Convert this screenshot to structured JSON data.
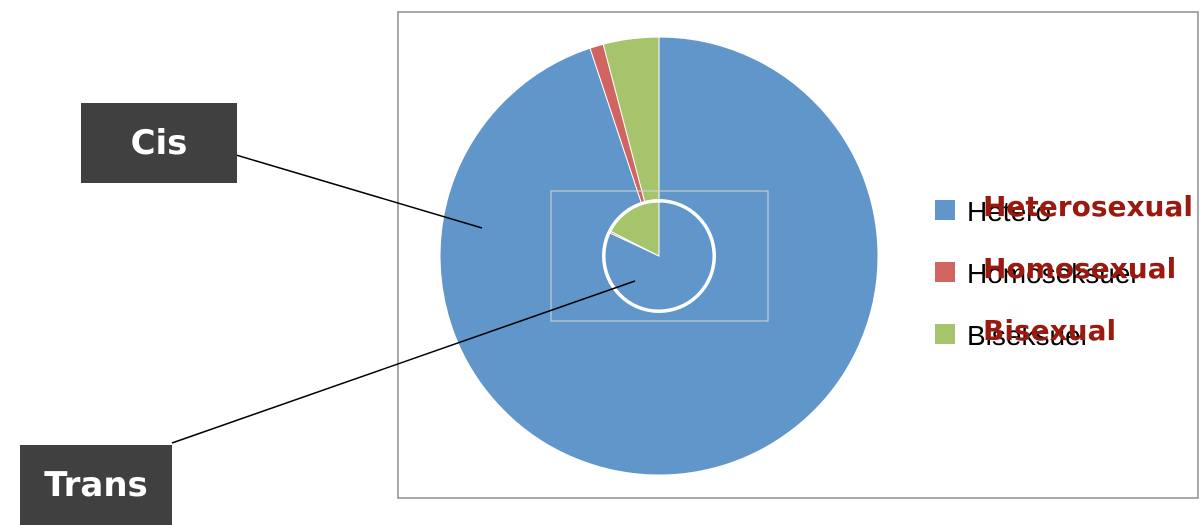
{
  "chart_data": {
    "type": "pie",
    "outer": {
      "name": "Cis",
      "slices": [
        {
          "label": "Hetero",
          "value": 94.9,
          "color": "#6196cb"
        },
        {
          "label": "Homoseksuel",
          "value": 1.0,
          "color": "#d06461"
        },
        {
          "label": "Biseksuel",
          "value": 4.1,
          "color": "#a6c46b"
        }
      ]
    },
    "inner": {
      "name": "Trans",
      "slices": [
        {
          "label": "Hetero",
          "value": 82.0,
          "color": "#6196cb"
        },
        {
          "label": "Homoseksuel",
          "value": 0.5,
          "color": "#d06461"
        },
        {
          "label": "Biseksuel",
          "value": 17.5,
          "color": "#a6c46b"
        }
      ]
    },
    "legend": {
      "placement": "right",
      "entries": [
        "Hetero",
        "Homoseksuel",
        "Biseksuel"
      ],
      "overlay": [
        "Heterosexual",
        "Homosexual",
        "Bisexual"
      ]
    }
  },
  "labels": {
    "cis": "Cis",
    "trans": "Trans"
  }
}
